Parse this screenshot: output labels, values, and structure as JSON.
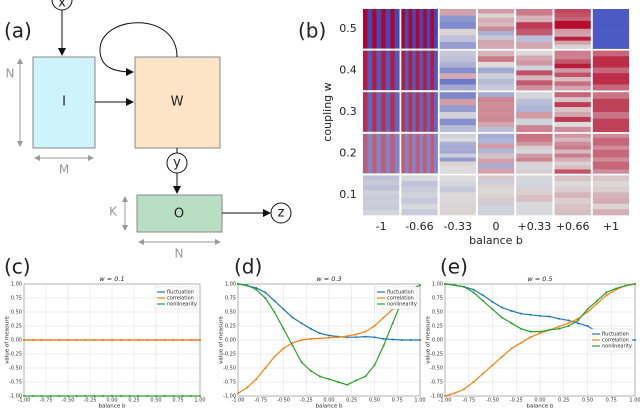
{
  "panel_labels": [
    "(a)",
    "(b)",
    "(c)",
    "(d)",
    "(e)"
  ],
  "diagram": {
    "input": "x",
    "box_i": "I",
    "box_w": "W",
    "hidden": "y",
    "box_o": "O",
    "output": "z",
    "dim_n1": "N",
    "dim_m": "M",
    "dim_k": "K",
    "dim_n2": "N"
  },
  "heatmap": {
    "ylabel": "coupling w",
    "xlabel": "balance b",
    "row_labels": [
      "0.5",
      "0.4",
      "0.3",
      "0.2",
      "0.1"
    ],
    "col_labels": [
      "-1",
      "-0.66",
      "-0.33",
      "0",
      "+0.33",
      "+0.66",
      "+1"
    ]
  },
  "chart_data": [
    {
      "type": "line",
      "title": "w = 0.1",
      "xlabel": "balance b",
      "ylabel": "value of measure",
      "legend": "upper right",
      "grid": true,
      "x": [
        -1,
        -0.9,
        -0.8,
        -0.7,
        -0.6,
        -0.5,
        -0.4,
        -0.3,
        -0.2,
        -0.1,
        0,
        0.1,
        0.2,
        0.3,
        0.4,
        0.5,
        0.6,
        0.7,
        0.8,
        0.9,
        1
      ],
      "xlim": [
        -1,
        1
      ],
      "ylim": [
        -1,
        1
      ],
      "xticks": [
        {
          "value": -1,
          "label": "-1.00"
        },
        {
          "value": -0.75,
          "label": "-0.75"
        },
        {
          "value": -0.5,
          "label": "-0.50"
        },
        {
          "value": -0.25,
          "label": "-0.25"
        },
        {
          "value": 0,
          "label": "0.00"
        },
        {
          "value": 0.25,
          "label": "0.25"
        },
        {
          "value": 0.5,
          "label": "0.50"
        },
        {
          "value": 0.75,
          "label": "0.75"
        },
        {
          "value": 1,
          "label": "1.00"
        }
      ],
      "yticks": [
        {
          "value": -1,
          "label": "-1.00"
        },
        {
          "value": -0.75,
          "label": "-0.75"
        },
        {
          "value": -0.5,
          "label": "-0.50"
        },
        {
          "value": -0.25,
          "label": "-0.25"
        },
        {
          "value": 0,
          "label": "0.00"
        },
        {
          "value": 0.25,
          "label": "0.25"
        },
        {
          "value": 0.5,
          "label": "0.50"
        },
        {
          "value": 0.75,
          "label": "0.75"
        },
        {
          "value": 1,
          "label": "1.00"
        }
      ],
      "series": [
        {
          "name": "fluctuation",
          "color": "#1f77b4",
          "values": [
            0,
            0,
            0,
            0,
            0,
            0,
            0,
            0,
            0,
            0,
            0,
            0,
            0,
            0,
            0,
            0,
            0,
            0,
            0,
            0,
            0
          ]
        },
        {
          "name": "correlation",
          "color": "#ff7f0e",
          "values": [
            0,
            0,
            0,
            0,
            0,
            0,
            0,
            0,
            0,
            0,
            0,
            0,
            0,
            0,
            0,
            0,
            0,
            0,
            0,
            0,
            0
          ]
        },
        {
          "name": "nonlinearity",
          "color": "#2ca02c",
          "values": [
            -1,
            -1,
            -1,
            -1,
            -1,
            -1,
            -1,
            -1,
            -1,
            -1,
            -1,
            -1,
            -1,
            -1,
            -1,
            -1,
            -1,
            -1,
            -1,
            -1,
            -1
          ]
        }
      ]
    },
    {
      "type": "line",
      "title": "w = 0.3",
      "xlabel": "balance b",
      "ylabel": "value of measure",
      "legend": "upper right",
      "grid": true,
      "x": [
        -1,
        -0.9,
        -0.8,
        -0.7,
        -0.6,
        -0.5,
        -0.4,
        -0.3,
        -0.2,
        -0.1,
        0,
        0.1,
        0.2,
        0.3,
        0.4,
        0.5,
        0.6,
        0.7,
        0.8,
        0.9,
        1
      ],
      "xlim": [
        -1,
        1
      ],
      "ylim": [
        -1,
        1
      ],
      "xticks": [
        {
          "value": -1,
          "label": "-1.00"
        },
        {
          "value": -0.75,
          "label": "-0.75"
        },
        {
          "value": -0.5,
          "label": "-0.50"
        },
        {
          "value": -0.25,
          "label": "-0.25"
        },
        {
          "value": 0,
          "label": "0.00"
        },
        {
          "value": 0.25,
          "label": "0.25"
        },
        {
          "value": 0.5,
          "label": "0.50"
        },
        {
          "value": 0.75,
          "label": "0.75"
        },
        {
          "value": 1,
          "label": "1.00"
        }
      ],
      "yticks": [
        {
          "value": -1,
          "label": "-1.00"
        },
        {
          "value": -0.75,
          "label": "-0.75"
        },
        {
          "value": -0.5,
          "label": "-0.50"
        },
        {
          "value": -0.25,
          "label": "-0.25"
        },
        {
          "value": 0,
          "label": "0.00"
        },
        {
          "value": 0.25,
          "label": "0.25"
        },
        {
          "value": 0.5,
          "label": "0.50"
        },
        {
          "value": 0.75,
          "label": "0.75"
        },
        {
          "value": 1,
          "label": "1.00"
        }
      ],
      "series": [
        {
          "name": "fluctuation",
          "color": "#1f77b4",
          "values": [
            1.0,
            0.97,
            0.93,
            0.85,
            0.7,
            0.55,
            0.4,
            0.3,
            0.2,
            0.12,
            0.08,
            0.06,
            0.05,
            0.05,
            0.06,
            0.05,
            0.02,
            0.01,
            0,
            0,
            0
          ]
        },
        {
          "name": "correlation",
          "color": "#ff7f0e",
          "values": [
            -0.95,
            -0.85,
            -0.7,
            -0.5,
            -0.3,
            -0.15,
            -0.05,
            0,
            0.02,
            0.03,
            0.04,
            0.05,
            0.07,
            0.1,
            0.15,
            0.25,
            0.4,
            0.55,
            0.75,
            0.9,
            0.98
          ]
        },
        {
          "name": "nonlinearity",
          "color": "#2ca02c",
          "values": [
            1.0,
            0.98,
            0.9,
            0.75,
            0.5,
            0.2,
            -0.1,
            -0.4,
            -0.55,
            -0.65,
            -0.7,
            -0.75,
            -0.8,
            -0.72,
            -0.65,
            -0.45,
            -0.1,
            0.3,
            0.7,
            0.9,
            0.98
          ]
        }
      ]
    },
    {
      "type": "line",
      "title": "w = 0.5",
      "xlabel": "balance b",
      "ylabel": "value of measure",
      "legend": "center right",
      "grid": true,
      "x": [
        -1,
        -0.9,
        -0.8,
        -0.7,
        -0.6,
        -0.5,
        -0.4,
        -0.3,
        -0.2,
        -0.1,
        0,
        0.1,
        0.2,
        0.3,
        0.4,
        0.5,
        0.6,
        0.7,
        0.8,
        0.9,
        1
      ],
      "xlim": [
        -1,
        1
      ],
      "ylim": [
        -1,
        1
      ],
      "xticks": [
        {
          "value": -1,
          "label": "-1.00"
        },
        {
          "value": -0.75,
          "label": "-0.75"
        },
        {
          "value": -0.5,
          "label": "-0.50"
        },
        {
          "value": -0.25,
          "label": "-0.25"
        },
        {
          "value": 0,
          "label": "0.00"
        },
        {
          "value": 0.25,
          "label": "0.25"
        },
        {
          "value": 0.5,
          "label": "0.50"
        },
        {
          "value": 0.75,
          "label": "0.75"
        },
        {
          "value": 1,
          "label": "1.00"
        }
      ],
      "yticks": [
        {
          "value": -1,
          "label": "-1.00"
        },
        {
          "value": -0.75,
          "label": "-0.75"
        },
        {
          "value": -0.5,
          "label": "-0.50"
        },
        {
          "value": -0.25,
          "label": "-0.25"
        },
        {
          "value": 0,
          "label": "0.00"
        },
        {
          "value": 0.25,
          "label": "0.25"
        },
        {
          "value": 0.5,
          "label": "0.50"
        },
        {
          "value": 0.75,
          "label": "0.75"
        },
        {
          "value": 1,
          "label": "1.00"
        }
      ],
      "series": [
        {
          "name": "fluctuation",
          "color": "#1f77b4",
          "values": [
            1.0,
            0.98,
            0.95,
            0.9,
            0.8,
            0.68,
            0.58,
            0.52,
            0.47,
            0.45,
            0.43,
            0.42,
            0.38,
            0.35,
            0.3,
            0.25,
            0.15,
            0.05,
            0.02,
            0,
            0
          ]
        },
        {
          "name": "correlation",
          "color": "#ff7f0e",
          "values": [
            -1.0,
            -0.95,
            -0.88,
            -0.75,
            -0.6,
            -0.45,
            -0.3,
            -0.15,
            -0.05,
            0.05,
            0.12,
            0.18,
            0.24,
            0.3,
            0.38,
            0.5,
            0.65,
            0.8,
            0.9,
            0.97,
            1.0
          ]
        },
        {
          "name": "nonlinearity",
          "color": "#2ca02c",
          "values": [
            1.0,
            0.98,
            0.95,
            0.85,
            0.7,
            0.55,
            0.4,
            0.3,
            0.2,
            0.15,
            0.15,
            0.18,
            0.2,
            0.25,
            0.35,
            0.55,
            0.7,
            0.85,
            0.92,
            0.97,
            1.0
          ]
        }
      ]
    }
  ]
}
